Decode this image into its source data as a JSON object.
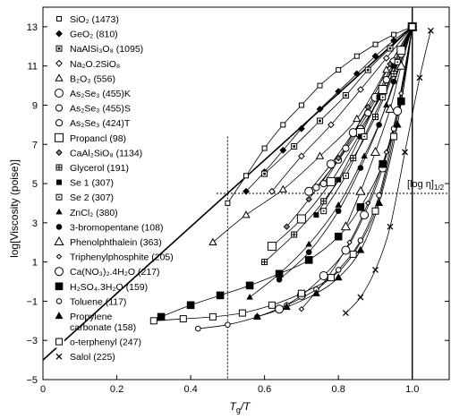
{
  "chart_data": {
    "type": "scatter",
    "xlabel_main": "T",
    "xlabel_sub": "g",
    "xlabel_tail": "/T",
    "ylabel": "log[Viscosity (poise)]",
    "xlim": [
      0,
      1.1
    ],
    "ylim": [
      -5,
      14
    ],
    "x_ticks": [
      0,
      0.2,
      0.4,
      0.6,
      0.8,
      1.0
    ],
    "x_tick_labels": [
      "0",
      "0.2",
      "0.4",
      "0.6",
      "0.8",
      "1.0"
    ],
    "y_ticks": [
      -5,
      -3,
      -1,
      1,
      3,
      5,
      7,
      9,
      11,
      13
    ],
    "y_tick_labels": [
      "−5",
      "−3",
      "−1",
      "1",
      "3",
      "5",
      "7",
      "9",
      "11",
      "13"
    ],
    "annotation": "[log η]",
    "annotation_sub": "1/2",
    "reference_lines": {
      "horizontal_y": 4.5,
      "vertical_x": 0.5,
      "vertical_x_tg": 1.0
    },
    "legend_placement": "left",
    "series": [
      {
        "name": "SiO₂ (1473)",
        "marker": "open-square-small",
        "x": [
          0.5,
          0.55,
          0.6,
          0.65,
          0.7,
          0.75,
          0.8,
          0.85,
          0.9,
          0.95,
          1.0
        ],
        "y": [
          4.0,
          5.4,
          6.8,
          8.0,
          9.0,
          10.0,
          10.8,
          11.5,
          12.1,
          12.6,
          13.0
        ]
      },
      {
        "name": "GeO₂ (810)",
        "marker": "filled-diamond",
        "x": [
          0.55,
          0.6,
          0.65,
          0.7,
          0.75,
          0.8,
          0.85,
          0.9,
          0.95,
          1.0
        ],
        "y": [
          4.6,
          5.6,
          6.7,
          7.8,
          8.8,
          9.7,
          10.6,
          11.5,
          12.3,
          13.0
        ]
      },
      {
        "name": "NaAlSi₃O₈ (1095)",
        "marker": "boxed-square",
        "x": [
          0.6,
          0.68,
          0.75,
          0.82,
          0.88,
          0.94,
          1.0
        ],
        "y": [
          5.5,
          6.9,
          8.2,
          9.5,
          10.8,
          11.9,
          13.0
        ]
      },
      {
        "name": "Na₂O.2SiO₈",
        "marker": "open-diamond",
        "x": [
          0.62,
          0.7,
          0.78,
          0.86,
          0.93,
          1.0
        ],
        "y": [
          4.6,
          6.4,
          8.0,
          9.8,
          11.4,
          13.0
        ]
      },
      {
        "name": "B₂O₃ (556)",
        "marker": "open-triangle",
        "x": [
          0.46,
          0.55,
          0.65,
          0.75,
          0.85,
          0.93,
          1.0
        ],
        "y": [
          2.0,
          3.4,
          4.7,
          6.4,
          8.3,
          10.8,
          13.0
        ]
      },
      {
        "name": "As₂Se₃ (455)K",
        "marker": "open-circle-large",
        "x": [
          0.72,
          0.78,
          0.84,
          0.9,
          0.95,
          1.0
        ],
        "y": [
          4.6,
          6.0,
          7.6,
          9.4,
          11.2,
          13.0
        ]
      },
      {
        "name": "As₂Se₃ (455)S",
        "marker": "open-circle-medium",
        "x": [
          0.74,
          0.8,
          0.86,
          0.92,
          0.97,
          1.0
        ],
        "y": [
          4.8,
          6.2,
          7.8,
          9.6,
          11.6,
          13.0
        ]
      },
      {
        "name": "As₂Se₃ (424)T",
        "marker": "open-circle-medium",
        "x": [
          0.76,
          0.82,
          0.88,
          0.93,
          0.97,
          1.0
        ],
        "y": [
          5.0,
          6.8,
          8.6,
          10.3,
          11.8,
          13.0
        ]
      },
      {
        "name": "Propancl (98)",
        "marker": "open-square-large",
        "x": [
          0.62,
          0.7,
          0.78,
          0.86,
          0.92,
          0.97,
          1.0
        ],
        "y": [
          1.8,
          3.2,
          5.1,
          7.6,
          9.8,
          11.8,
          13.0
        ]
      },
      {
        "name": "CaAl₂SiO₈ (1134)",
        "marker": "gray-diamond",
        "x": [
          0.66,
          0.72,
          0.8,
          0.88,
          0.94,
          1.0
        ],
        "y": [
          2.8,
          4.2,
          6.3,
          8.9,
          11.1,
          13.0
        ]
      },
      {
        "name": "Glycerol (191)",
        "marker": "crossed-square",
        "x": [
          0.6,
          0.68,
          0.76,
          0.84,
          0.9,
          0.95,
          1.0
        ],
        "y": [
          1.0,
          2.4,
          4.1,
          6.3,
          8.4,
          10.6,
          13.0
        ]
      },
      {
        "name": "Se 1 (307)",
        "marker": "filled-square-small",
        "x": [
          0.74,
          0.8,
          0.86,
          0.91,
          0.95,
          1.0
        ],
        "y": [
          3.4,
          5.2,
          7.4,
          9.4,
          11.0,
          13.0
        ]
      },
      {
        "name": "Se 2 (307)",
        "marker": "dotted-square",
        "x": [
          0.76,
          0.82,
          0.87,
          0.92,
          0.96,
          1.0
        ],
        "y": [
          3.6,
          5.4,
          7.4,
          9.4,
          11.2,
          13.0
        ]
      },
      {
        "name": "ZnCl₂ (380)",
        "marker": "filled-triangle-small",
        "x": [
          0.56,
          0.64,
          0.72,
          0.8,
          0.87,
          0.93,
          1.0
        ],
        "y": [
          -0.8,
          0.4,
          1.9,
          3.9,
          6.4,
          9.0,
          13.0
        ]
      },
      {
        "name": "3-bromopentane (108)",
        "marker": "filled-circle",
        "x": [
          0.64,
          0.72,
          0.8,
          0.86,
          0.91,
          0.95,
          1.0
        ],
        "y": [
          0.1,
          1.5,
          3.6,
          5.8,
          8.0,
          10.2,
          13.0
        ]
      },
      {
        "name": "Phenolphthalein (363)",
        "marker": "open-triangle-large",
        "x": [
          0.82,
          0.86,
          0.9,
          0.94,
          0.97,
          1.0
        ],
        "y": [
          2.8,
          4.6,
          6.6,
          8.8,
          11.0,
          13.0
        ]
      },
      {
        "name": "Triphenylphosphite (205)",
        "marker": "open-diamond-small",
        "x": [
          0.7,
          0.77,
          0.83,
          0.88,
          0.93,
          0.97,
          1.0
        ],
        "y": [
          -1.4,
          0.2,
          2.0,
          4.0,
          6.6,
          9.6,
          13.0
        ]
      },
      {
        "name": "Ca(NO₃)₂.4H₂O (217)",
        "marker": "open-circle-large",
        "x": [
          0.64,
          0.7,
          0.76,
          0.82,
          0.87,
          0.92,
          0.96,
          1.0
        ],
        "y": [
          -1.4,
          -0.7,
          0.3,
          1.6,
          3.4,
          5.8,
          8.7,
          13.0
        ]
      },
      {
        "name": "H₂SO₄.3H₂O (159)",
        "marker": "filled-square-large",
        "x": [
          0.32,
          0.4,
          0.48,
          0.56,
          0.64,
          0.72,
          0.8,
          0.86,
          0.92,
          0.97,
          1.0
        ],
        "y": [
          -1.8,
          -1.2,
          -0.7,
          -0.2,
          0.4,
          1.1,
          2.3,
          3.8,
          6.0,
          9.2,
          13.0
        ]
      },
      {
        "name": "Toluene (117)",
        "marker": "open-circle-small",
        "x": [
          0.42,
          0.5,
          0.58,
          0.66,
          0.74,
          0.8,
          0.86,
          0.91,
          0.95,
          1.0
        ],
        "y": [
          -2.4,
          -2.2,
          -1.8,
          -1.2,
          -0.4,
          0.6,
          2.1,
          4.4,
          7.8,
          13.0
        ]
      },
      {
        "name": "Propylene",
        "name_line2": "carbonate (158)",
        "marker": "filled-triangle",
        "x": [
          0.58,
          0.66,
          0.74,
          0.8,
          0.86,
          0.91,
          0.96,
          1.0
        ],
        "y": [
          -1.8,
          -1.3,
          -0.6,
          0.2,
          1.6,
          4.0,
          8.0,
          13.0
        ]
      },
      {
        "name": "o-terphenyl (247)",
        "marker": "open-square-medium",
        "x": [
          0.3,
          0.38,
          0.46,
          0.54,
          0.62,
          0.7,
          0.78,
          0.84,
          0.9,
          0.95,
          1.0
        ],
        "y": [
          -2.0,
          -1.9,
          -1.8,
          -1.6,
          -1.2,
          -0.6,
          0.2,
          1.4,
          3.6,
          7.4,
          13.0
        ]
      },
      {
        "name": "Salol (225)",
        "marker": "x-cross",
        "x": [
          0.82,
          0.86,
          0.9,
          0.94,
          0.98,
          1.02,
          1.05
        ],
        "y": [
          -1.6,
          -0.8,
          0.6,
          2.8,
          6.6,
          10.4,
          12.8
        ]
      }
    ]
  }
}
